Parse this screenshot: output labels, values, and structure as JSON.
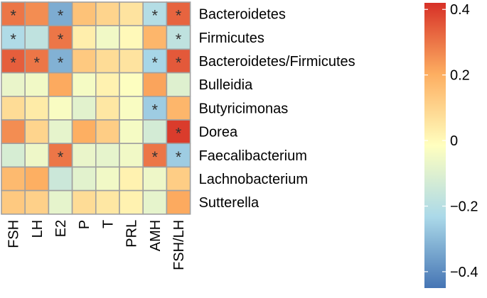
{
  "chart_data": {
    "type": "heatmap",
    "rows": [
      "Bacteroidetes",
      "Firmicutes",
      "Bacteroidetes/Firmicutes",
      "Bulleidia",
      "Butyricimonas",
      "Dorea",
      "Faecalibacterium",
      "Lachnobacterium",
      "Sutterella"
    ],
    "columns": [
      "FSH",
      "LH",
      "E2",
      "P",
      "T",
      "PRL",
      "AMH",
      "FSH/LH"
    ],
    "values": [
      [
        0.3,
        0.26,
        -0.33,
        0.15,
        0.1,
        0.06,
        -0.21,
        0.33
      ],
      [
        -0.22,
        -0.18,
        0.3,
        0.03,
        -0.05,
        0.0,
        0.18,
        -0.18
      ],
      [
        0.34,
        0.3,
        -0.32,
        0.13,
        0.08,
        0.06,
        -0.24,
        0.35
      ],
      [
        -0.07,
        -0.05,
        0.21,
        -0.04,
        0.02,
        -0.02,
        0.22,
        -0.1
      ],
      [
        0.08,
        0.04,
        -0.03,
        -0.09,
        0.05,
        -0.03,
        -0.26,
        0.18
      ],
      [
        0.26,
        0.1,
        -0.08,
        0.2,
        0.12,
        -0.04,
        -0.13,
        0.4
      ],
      [
        -0.12,
        -0.06,
        0.3,
        -0.07,
        -0.08,
        -0.05,
        0.3,
        -0.26
      ],
      [
        0.17,
        0.2,
        -0.15,
        -0.09,
        -0.05,
        0.02,
        -0.06,
        0.12
      ],
      [
        0.13,
        0.11,
        -0.08,
        0.08,
        0.05,
        0.02,
        -0.08,
        0.21
      ]
    ],
    "significant": [
      [
        1,
        0,
        1,
        0,
        0,
        0,
        1,
        1
      ],
      [
        1,
        0,
        1,
        0,
        0,
        0,
        0,
        1
      ],
      [
        1,
        1,
        1,
        0,
        0,
        0,
        1,
        1
      ],
      [
        0,
        0,
        0,
        0,
        0,
        0,
        0,
        0
      ],
      [
        0,
        0,
        0,
        0,
        0,
        0,
        1,
        0
      ],
      [
        0,
        0,
        0,
        0,
        0,
        0,
        0,
        1
      ],
      [
        0,
        0,
        1,
        0,
        0,
        0,
        1,
        1
      ],
      [
        0,
        0,
        0,
        0,
        0,
        0,
        0,
        0
      ],
      [
        0,
        0,
        0,
        0,
        0,
        0,
        0,
        0
      ]
    ],
    "significance_mark": "*",
    "colorbar": {
      "range": [
        -0.45,
        0.42
      ],
      "ticks": [
        0.4,
        0.2,
        0,
        -0.2,
        -0.4
      ],
      "tick_labels": [
        "0.4",
        "0.2",
        "0",
        "−0.2",
        "−0.4"
      ],
      "colors": [
        "#4575b4",
        "#abd9e9",
        "#ffffbf",
        "#fdae61",
        "#d73027"
      ]
    },
    "legend_placement": "right",
    "title": "",
    "xlabel": "",
    "ylabel": ""
  }
}
